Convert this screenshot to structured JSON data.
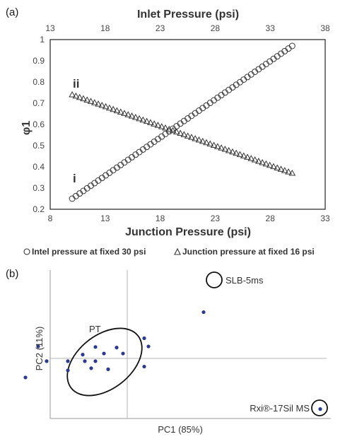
{
  "chart_data": [
    {
      "panel_label": "(a)",
      "type": "scatter",
      "x_bottom": {
        "label": "Junction Pressure (psi)",
        "lim": [
          8,
          33
        ],
        "ticks": [
          "8",
          "13",
          "18",
          "23",
          "28",
          "33"
        ]
      },
      "x_top": {
        "label": "Inlet Pressure (psi)",
        "lim": [
          13,
          38
        ],
        "ticks": [
          "13",
          "18",
          "23",
          "28",
          "33",
          "38"
        ]
      },
      "ylabel": "φ1",
      "ylim": [
        0.2,
        1.0
      ],
      "yticks": [
        "0.2",
        "0.3",
        "0.4",
        "0.5",
        "0.6",
        "0.7",
        "0.8",
        "0.9",
        "1"
      ],
      "grid": false,
      "series": [
        {
          "marker": "circle",
          "tag": "i",
          "axis": "x_top",
          "x_start": 15,
          "x_end": 35,
          "y_start": 0.25,
          "y_end": 0.97,
          "n_points": 60
        },
        {
          "marker": "triangle",
          "tag": "ii",
          "axis": "x_bottom",
          "x_start": 10,
          "x_end": 30,
          "y_start": 0.74,
          "y_end": 0.37,
          "n_points": 60
        }
      ],
      "legend": {
        "placement": "bottom",
        "entries": [
          {
            "marker": "circle",
            "text": "Intel pressure at fixed 30 psi"
          },
          {
            "marker": "triangle",
            "text": "Junction pressure at fixed 16 psi"
          }
        ]
      }
    },
    {
      "panel_label": "(b)",
      "type": "scatter",
      "xlabel": "PC1 (85%)",
      "ylabel": "PC2 (11%)",
      "xlim": [
        -1,
        1
      ],
      "ylim": [
        -1,
        1
      ],
      "color": "#2b3a8c",
      "groups": [
        {
          "label": "PT",
          "encircled": true
        },
        {
          "label": "SLB-5ms",
          "encircled": true
        },
        {
          "label": "Rxi®-17Sil MS",
          "encircled": true
        }
      ],
      "points": [
        {
          "x": -0.83,
          "y": -0.58
        },
        {
          "x": -0.71,
          "y": -0.03
        },
        {
          "x": -0.48,
          "y": -0.35
        },
        {
          "x": -0.42,
          "y": 0.22
        },
        {
          "x": -0.38,
          "y": -0.05
        },
        {
          "x": -0.28,
          "y": -0.05
        },
        {
          "x": -0.28,
          "y": -0.22
        },
        {
          "x": -0.21,
          "y": 0.07
        },
        {
          "x": -0.2,
          "y": -0.05
        },
        {
          "x": -0.17,
          "y": -0.18
        },
        {
          "x": -0.15,
          "y": -0.05
        },
        {
          "x": -0.15,
          "y": 0.21
        },
        {
          "x": -0.11,
          "y": 0.09
        },
        {
          "x": -0.09,
          "y": -0.2
        },
        {
          "x": -0.05,
          "y": 0.2
        },
        {
          "x": -0.02,
          "y": 0.09
        },
        {
          "x": 0.08,
          "y": 0.37
        },
        {
          "x": 0.08,
          "y": -0.15
        },
        {
          "x": 0.1,
          "y": 0.22
        },
        {
          "x": 0.91,
          "y": -0.93
        },
        {
          "x": 0.36,
          "y": 0.85
        }
      ]
    }
  ]
}
